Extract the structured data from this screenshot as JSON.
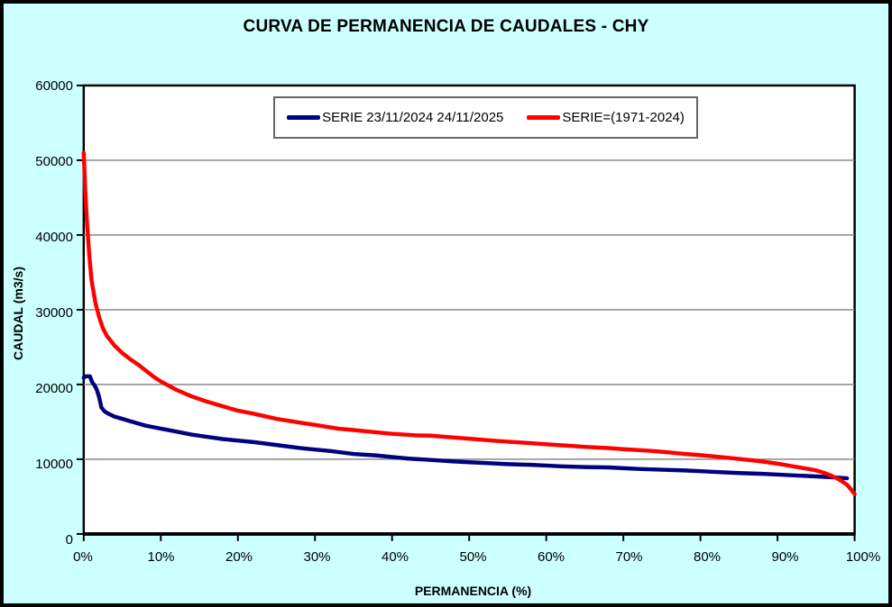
{
  "title": "CURVA DE PERMANENCIA DE CAUDALES - CHY",
  "colors": {
    "background": "#CCFFFF",
    "plot_background": "#FFFFFF",
    "gridline": "#7F7F7F",
    "axis": "#000000",
    "legend_border": "#666666",
    "series_current": "#000080",
    "series_historic": "#FF0000"
  },
  "axes": {
    "x_title": "PERMANENCIA (%)",
    "y_title": "CAUDAL (m3/s)"
  },
  "legend": {
    "items": [
      {
        "label": "SERIE 23/11/2024 24/11/2025",
        "color": "#000080"
      },
      {
        "label": "SERIE=(1971-2024)",
        "color": "#FF0000"
      }
    ]
  },
  "chart_data": {
    "type": "line",
    "title": "CURVA DE PERMANENCIA DE CAUDALES - CHY",
    "xlabel": "PERMANENCIA (%)",
    "ylabel": "CAUDAL (m3/s)",
    "xlim": [
      0,
      100
    ],
    "ylim": [
      0,
      60000
    ],
    "x_ticks": [
      0,
      10,
      20,
      30,
      40,
      50,
      60,
      70,
      80,
      90,
      100
    ],
    "x_tick_labels": [
      "0%",
      "10%",
      "20%",
      "30%",
      "40%",
      "50%",
      "60%",
      "70%",
      "80%",
      "90%",
      "100%"
    ],
    "y_ticks": [
      0,
      10000,
      20000,
      30000,
      40000,
      50000,
      60000
    ],
    "y_tick_labels": [
      "0",
      "10000",
      "20000",
      "30000",
      "40000",
      "50000",
      "60000"
    ],
    "grid": "horizontal-only",
    "legend_position": "top-center",
    "series": [
      {
        "name": "SERIE 23/11/2024 24/11/2025",
        "color": "#000080",
        "points": [
          [
            0,
            20900
          ],
          [
            0.3,
            21100
          ],
          [
            0.8,
            21100
          ],
          [
            1.1,
            20300
          ],
          [
            1.4,
            19900
          ],
          [
            1.7,
            19300
          ],
          [
            2.0,
            18300
          ],
          [
            2.3,
            16900
          ],
          [
            2.7,
            16400
          ],
          [
            3,
            16200
          ],
          [
            4,
            15700
          ],
          [
            5,
            15400
          ],
          [
            6,
            15100
          ],
          [
            7,
            14800
          ],
          [
            8,
            14500
          ],
          [
            9,
            14300
          ],
          [
            10,
            14100
          ],
          [
            12,
            13700
          ],
          [
            14,
            13300
          ],
          [
            16,
            13000
          ],
          [
            18,
            12700
          ],
          [
            20,
            12500
          ],
          [
            22,
            12300
          ],
          [
            25,
            11900
          ],
          [
            28,
            11500
          ],
          [
            30,
            11300
          ],
          [
            32,
            11100
          ],
          [
            35,
            10700
          ],
          [
            38,
            10500
          ],
          [
            40,
            10300
          ],
          [
            42,
            10100
          ],
          [
            45,
            9900
          ],
          [
            48,
            9700
          ],
          [
            50,
            9600
          ],
          [
            52,
            9500
          ],
          [
            55,
            9350
          ],
          [
            58,
            9250
          ],
          [
            60,
            9150
          ],
          [
            62,
            9050
          ],
          [
            65,
            8950
          ],
          [
            68,
            8900
          ],
          [
            70,
            8800
          ],
          [
            72,
            8700
          ],
          [
            75,
            8600
          ],
          [
            78,
            8500
          ],
          [
            80,
            8400
          ],
          [
            82,
            8300
          ],
          [
            85,
            8150
          ],
          [
            88,
            8050
          ],
          [
            90,
            7950
          ],
          [
            92,
            7850
          ],
          [
            95,
            7700
          ],
          [
            97,
            7600
          ],
          [
            99,
            7450
          ]
        ]
      },
      {
        "name": "SERIE=(1971-2024)",
        "color": "#FF0000",
        "points": [
          [
            0,
            51000
          ],
          [
            0.2,
            46000
          ],
          [
            0.4,
            42000
          ],
          [
            0.7,
            37500
          ],
          [
            1,
            34000
          ],
          [
            1.5,
            31000
          ],
          [
            2,
            29000
          ],
          [
            2.5,
            27500
          ],
          [
            3,
            26500
          ],
          [
            4,
            25200
          ],
          [
            5,
            24200
          ],
          [
            6,
            23400
          ],
          [
            7,
            22700
          ],
          [
            8,
            21900
          ],
          [
            9,
            21100
          ],
          [
            10,
            20400
          ],
          [
            12,
            19300
          ],
          [
            14,
            18400
          ],
          [
            16,
            17700
          ],
          [
            18,
            17100
          ],
          [
            20,
            16500
          ],
          [
            22,
            16100
          ],
          [
            25,
            15400
          ],
          [
            28,
            14900
          ],
          [
            30,
            14600
          ],
          [
            33,
            14100
          ],
          [
            35,
            13900
          ],
          [
            38,
            13600
          ],
          [
            40,
            13400
          ],
          [
            43,
            13200
          ],
          [
            45,
            13150
          ],
          [
            48,
            12900
          ],
          [
            50,
            12750
          ],
          [
            53,
            12500
          ],
          [
            55,
            12350
          ],
          [
            58,
            12150
          ],
          [
            60,
            12000
          ],
          [
            63,
            11800
          ],
          [
            65,
            11650
          ],
          [
            68,
            11500
          ],
          [
            70,
            11350
          ],
          [
            73,
            11150
          ],
          [
            75,
            11000
          ],
          [
            78,
            10700
          ],
          [
            80,
            10550
          ],
          [
            83,
            10250
          ],
          [
            85,
            10050
          ],
          [
            88,
            9700
          ],
          [
            90,
            9400
          ],
          [
            92,
            9050
          ],
          [
            94,
            8700
          ],
          [
            95,
            8500
          ],
          [
            96,
            8200
          ],
          [
            97,
            7800
          ],
          [
            98,
            7300
          ],
          [
            99,
            6600
          ],
          [
            99.5,
            6000
          ],
          [
            100,
            5350
          ]
        ]
      }
    ]
  }
}
